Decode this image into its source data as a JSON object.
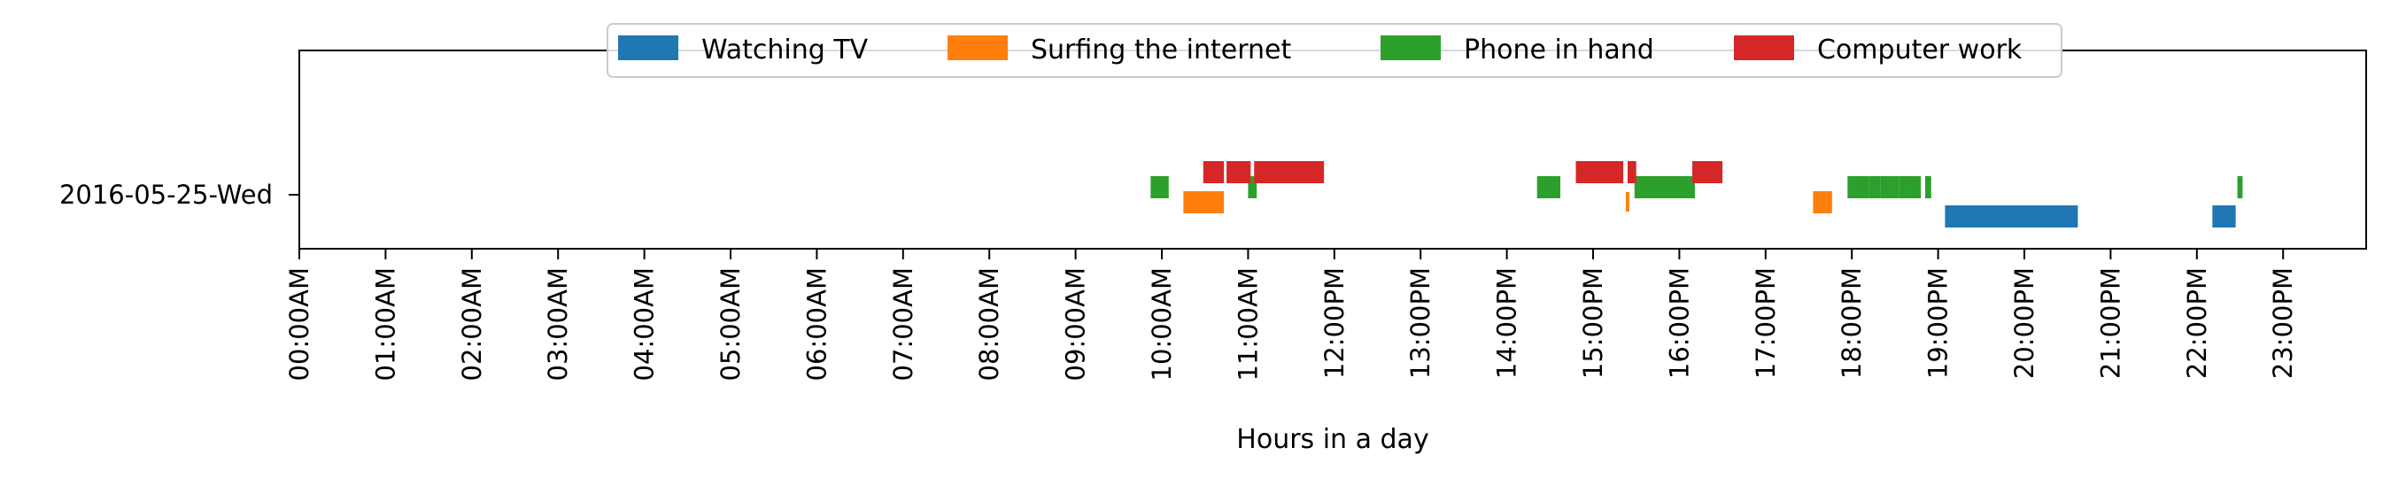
{
  "chart_data": {
    "type": "timeline",
    "title": "",
    "xlabel": "Hours in a day",
    "ylabel": "",
    "xlim": [
      0,
      24
    ],
    "category": "2016-05-25-Wed",
    "xticks": [
      "00:00AM",
      "01:00AM",
      "02:00AM",
      "03:00AM",
      "04:00AM",
      "05:00AM",
      "06:00AM",
      "07:00AM",
      "08:00AM",
      "09:00AM",
      "10:00AM",
      "11:00AM",
      "12:00PM",
      "13:00PM",
      "14:00PM",
      "15:00PM",
      "16:00PM",
      "17:00PM",
      "18:00PM",
      "19:00PM",
      "20:00PM",
      "21:00PM",
      "22:00PM",
      "23:00PM"
    ],
    "legend_position": "top-center",
    "grid": false,
    "series": [
      {
        "name": "Watching TV",
        "color": "#1f77b4",
        "lane": "bottom",
        "intervals": [
          [
            19.08,
            20.62
          ],
          [
            22.18,
            22.45
          ]
        ]
      },
      {
        "name": "Surfing the internet",
        "color": "#ff7f0e",
        "lane": "lower-middle",
        "intervals": [
          [
            10.25,
            10.72
          ],
          [
            15.38,
            15.42
          ],
          [
            17.55,
            17.77
          ]
        ]
      },
      {
        "name": "Phone in hand",
        "color": "#2ca02c",
        "lane": "upper-middle",
        "intervals": [
          [
            9.87,
            10.08
          ],
          [
            11.0,
            11.1
          ],
          [
            14.35,
            14.62
          ],
          [
            15.48,
            16.18
          ],
          [
            17.95,
            18.2
          ],
          [
            18.2,
            18.33
          ],
          [
            18.33,
            18.45
          ],
          [
            18.45,
            18.55
          ],
          [
            18.55,
            18.66
          ],
          [
            18.66,
            18.8
          ],
          [
            18.85,
            18.92
          ],
          [
            22.47,
            22.53
          ]
        ]
      },
      {
        "name": "Computer work",
        "color": "#d62728",
        "lane": "top",
        "intervals": [
          [
            10.48,
            10.72
          ],
          [
            10.75,
            11.03
          ],
          [
            11.07,
            11.88
          ],
          [
            14.8,
            15.35
          ],
          [
            15.4,
            15.5
          ],
          [
            16.15,
            16.5
          ]
        ]
      }
    ]
  }
}
